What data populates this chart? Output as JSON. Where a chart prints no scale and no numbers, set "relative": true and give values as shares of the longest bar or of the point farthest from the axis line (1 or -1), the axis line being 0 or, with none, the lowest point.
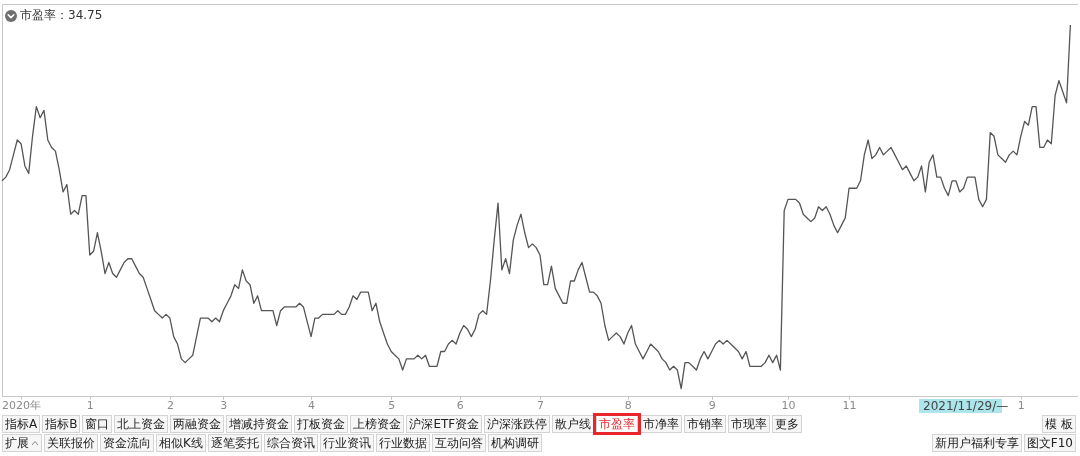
{
  "chart_data": {
    "type": "line",
    "title": "市盈率：34.75",
    "relative": true,
    "categories": [
      null,
      null,
      null,
      null,
      null,
      "2020年",
      null,
      null,
      null,
      null,
      null,
      null,
      null,
      null,
      null,
      null,
      null,
      null,
      null,
      null,
      null,
      null,
      null,
      "1",
      null,
      null,
      null,
      null,
      null,
      null,
      null,
      null,
      null,
      null,
      null,
      null,
      null,
      null,
      null,
      null,
      null,
      null,
      null,
      null,
      "2",
      null,
      null,
      null,
      null,
      null,
      null,
      null,
      null,
      null,
      null,
      null,
      null,
      null,
      "3",
      null,
      null,
      null,
      null,
      null,
      null,
      null,
      null,
      null,
      null,
      null,
      null,
      null,
      null,
      null,
      null,
      null,
      null,
      null,
      null,
      null,
      null,
      "4",
      null,
      null,
      null,
      null,
      null,
      null,
      null,
      null,
      null,
      null,
      null,
      null,
      null,
      null,
      null,
      null,
      null,
      null,
      null,
      null,
      "5",
      null,
      null,
      null,
      null,
      null,
      null,
      null,
      null,
      null,
      null,
      null,
      null,
      null,
      null,
      null,
      null,
      null,
      "6",
      null,
      null,
      null,
      null,
      null,
      null,
      null,
      null,
      null,
      null,
      null,
      null,
      null,
      null,
      null,
      null,
      null,
      null,
      null,
      null,
      "7",
      null,
      null,
      null,
      null,
      null,
      null,
      null,
      null,
      null,
      null,
      null,
      null,
      null,
      null,
      null,
      null,
      null,
      null,
      null,
      null,
      null,
      null,
      "8",
      null,
      null,
      null,
      null,
      null,
      null,
      null,
      null,
      null,
      null,
      null,
      null,
      null,
      null,
      null,
      null,
      null,
      null,
      null,
      null,
      null,
      "9",
      null,
      null,
      null,
      null,
      null,
      null,
      null,
      null,
      null,
      null,
      null,
      null,
      null,
      null,
      null,
      null,
      null,
      null,
      null,
      "10",
      null,
      null,
      null,
      null,
      null,
      null,
      null,
      null,
      null,
      null,
      null,
      null,
      null,
      null,
      null,
      "11",
      null,
      null,
      null,
      null,
      null,
      null,
      null,
      null,
      null,
      null,
      null,
      null,
      null,
      null,
      null,
      null,
      null,
      null,
      null,
      null,
      null,
      null,
      null,
      null,
      null,
      null,
      null,
      null,
      null,
      null,
      null,
      null,
      null,
      null,
      null,
      null,
      null,
      null,
      null,
      null,
      null,
      null,
      null,
      null,
      "1",
      null,
      null,
      null,
      null,
      null,
      null,
      null,
      null,
      null,
      null,
      null,
      null,
      null
    ],
    "series": [
      {
        "color": "#555555",
        "values": [
          0.58,
          0.59,
          0.61,
          0.65,
          0.69,
          0.68,
          0.62,
          0.6,
          0.7,
          0.78,
          0.75,
          0.77,
          0.69,
          0.67,
          0.66,
          0.61,
          0.55,
          0.57,
          0.49,
          0.5,
          0.49,
          0.54,
          0.54,
          0.38,
          0.39,
          0.44,
          0.39,
          0.33,
          0.36,
          0.33,
          0.32,
          0.34,
          0.36,
          0.37,
          0.37,
          0.35,
          0.33,
          0.32,
          0.29,
          0.26,
          0.23,
          0.22,
          0.21,
          0.22,
          0.21,
          0.16,
          0.14,
          0.1,
          0.09,
          0.1,
          0.11,
          0.16,
          0.21,
          0.21,
          0.21,
          0.2,
          0.21,
          0.2,
          0.23,
          0.25,
          0.27,
          0.3,
          0.29,
          0.34,
          0.31,
          0.3,
          0.25,
          0.27,
          0.23,
          0.23,
          0.23,
          0.23,
          0.19,
          0.23,
          0.24,
          0.24,
          0.24,
          0.24,
          0.25,
          0.24,
          0.2,
          0.16,
          0.21,
          0.21,
          0.22,
          0.22,
          0.22,
          0.22,
          0.23,
          0.22,
          0.22,
          0.24,
          0.27,
          0.26,
          0.28,
          0.28,
          0.28,
          0.23,
          0.25,
          0.2,
          0.17,
          0.14,
          0.12,
          0.11,
          0.1,
          0.07,
          0.1,
          0.1,
          0.1,
          0.11,
          0.1,
          0.11,
          0.08,
          0.08,
          0.08,
          0.12,
          0.12,
          0.14,
          0.15,
          0.14,
          0.17,
          0.19,
          0.18,
          0.16,
          0.18,
          0.22,
          0.23,
          0.22,
          0.31,
          0.42,
          0.52,
          0.34,
          0.37,
          0.33,
          0.42,
          0.46,
          0.49,
          0.44,
          0.4,
          0.41,
          0.4,
          0.38,
          0.3,
          0.3,
          0.35,
          0.29,
          0.27,
          0.25,
          0.25,
          0.31,
          0.31,
          0.34,
          0.36,
          0.32,
          0.28,
          0.28,
          0.27,
          0.25,
          0.19,
          0.15,
          0.16,
          0.17,
          0.16,
          0.14,
          0.17,
          0.19,
          0.14,
          0.12,
          0.1,
          0.12,
          0.14,
          0.13,
          0.12,
          0.1,
          0.09,
          0.07,
          0.08,
          0.07,
          0.02,
          0.09,
          0.09,
          0.08,
          0.07,
          0.1,
          0.12,
          0.1,
          0.12,
          0.14,
          0.15,
          0.14,
          0.15,
          0.14,
          0.13,
          0.12,
          0.1,
          0.12,
          0.08,
          0.08,
          0.08,
          0.08,
          0.09,
          0.11,
          0.09,
          0.11,
          0.07,
          0.5,
          0.53,
          0.53,
          0.53,
          0.52,
          0.49,
          0.48,
          0.47,
          0.48,
          0.51,
          0.5,
          0.51,
          0.49,
          0.46,
          0.44,
          0.46,
          0.48,
          0.56,
          0.56,
          0.56,
          0.58,
          0.65,
          0.69,
          0.64,
          0.65,
          0.67,
          0.65,
          0.66,
          0.67,
          0.65,
          0.63,
          0.61,
          0.62,
          0.6,
          0.58,
          0.59,
          0.62,
          0.55,
          0.63,
          0.65,
          0.59,
          0.59,
          0.56,
          0.54,
          0.58,
          0.58,
          0.55,
          0.56,
          0.59,
          0.59,
          0.59,
          0.53,
          0.51,
          0.53,
          0.71,
          0.7,
          0.65,
          0.64,
          0.63,
          0.65,
          0.66,
          0.65,
          0.7,
          0.74,
          0.73,
          0.78,
          0.78,
          0.67,
          0.67,
          0.69,
          0.68,
          0.81,
          0.85,
          0.82,
          0.79,
          1
        ]
      }
    ],
    "annotations": [
      "2021/11/29/—",
      "指标A",
      "指标B",
      "窗口",
      "北上资金",
      "两融资金",
      "增减持资金",
      "打板资金",
      "上榜资金",
      "沪深ETF资金",
      "沪深涨跌停",
      "散户线",
      "市盈率",
      "市净率",
      "市销率",
      "市现率",
      "更多",
      "模 板",
      "扩展",
      "关联报价",
      "资金流向",
      "相似K线",
      "逐笔委托",
      "综合资讯",
      "行业资讯",
      "行业数据",
      "互动问答",
      "机构调研",
      "新用户福利专享",
      "图文F10"
    ]
  }
}
